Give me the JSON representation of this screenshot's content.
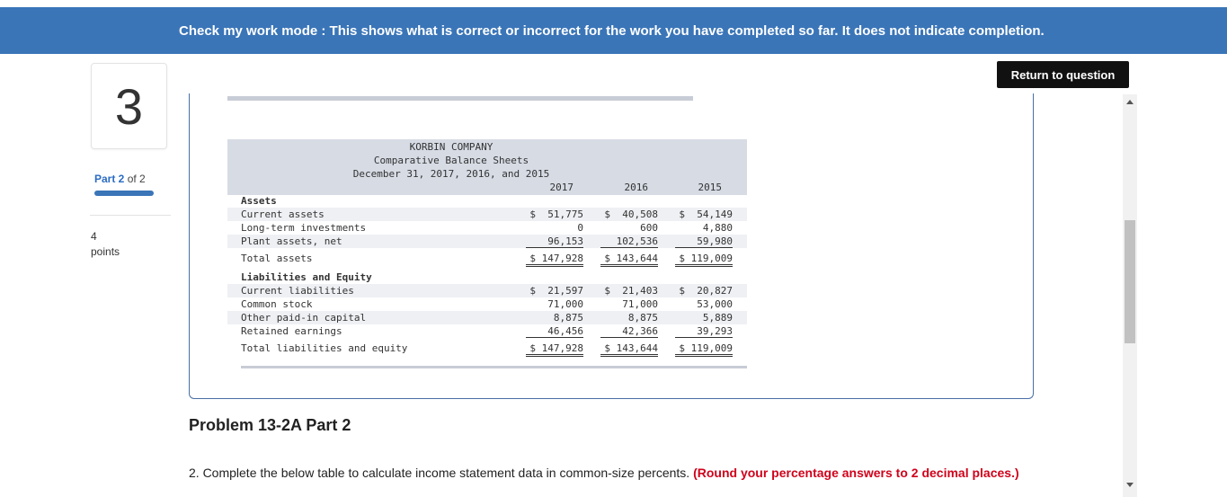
{
  "banner": {
    "text": "Check my work mode : This shows what is correct or incorrect for the work you have completed so far. It does not indicate completion."
  },
  "question": {
    "number": "3",
    "part_label": "Part 2",
    "part_of": "of 2",
    "points_value": "4",
    "points_label": "points"
  },
  "actions": {
    "return_label": "Return to question"
  },
  "balance_sheet": {
    "company": "KORBIN COMPANY",
    "title": "Comparative Balance Sheets",
    "date": "December 31, 2017, 2016, and 2015",
    "years": [
      "2017",
      "2016",
      "2015"
    ],
    "rows": [
      {
        "label": "Assets",
        "values": [
          "",
          "",
          ""
        ]
      },
      {
        "label": "Current assets",
        "values": [
          "$  51,775",
          "$  40,508",
          "$  54,149"
        ]
      },
      {
        "label": "Long-term investments",
        "values": [
          "0",
          "600",
          "4,880"
        ]
      },
      {
        "label": "Plant assets, net",
        "values": [
          "96,153",
          "102,536",
          "59,980"
        ]
      },
      {
        "label": "Total assets",
        "values": [
          "$ 147,928",
          "$ 143,644",
          "$ 119,009"
        ]
      },
      {
        "label": "Liabilities and Equity",
        "values": [
          "",
          "",
          ""
        ]
      },
      {
        "label": "Current liabilities",
        "values": [
          "$  21,597",
          "$  21,403",
          "$  20,827"
        ]
      },
      {
        "label": "Common stock",
        "values": [
          "71,000",
          "71,000",
          "53,000"
        ]
      },
      {
        "label": "Other paid-in capital",
        "values": [
          "8,875",
          "8,875",
          "5,889"
        ]
      },
      {
        "label": "Retained earnings",
        "values": [
          "46,456",
          "42,366",
          "39,293"
        ]
      },
      {
        "label": "Total liabilities and equity",
        "values": [
          "$ 147,928",
          "$ 143,644",
          "$ 119,009"
        ]
      }
    ]
  },
  "problem": {
    "title": "Problem 13-2A Part 2",
    "instruction": "2. Complete the below table to calculate income statement data in common-size percents.",
    "instruction_note": "(Round your percentage answers to 2 decimal places.)"
  },
  "colors": {
    "banner": "#3a75b8",
    "accent": "#2b6cc4",
    "warning": "#d0021b"
  }
}
